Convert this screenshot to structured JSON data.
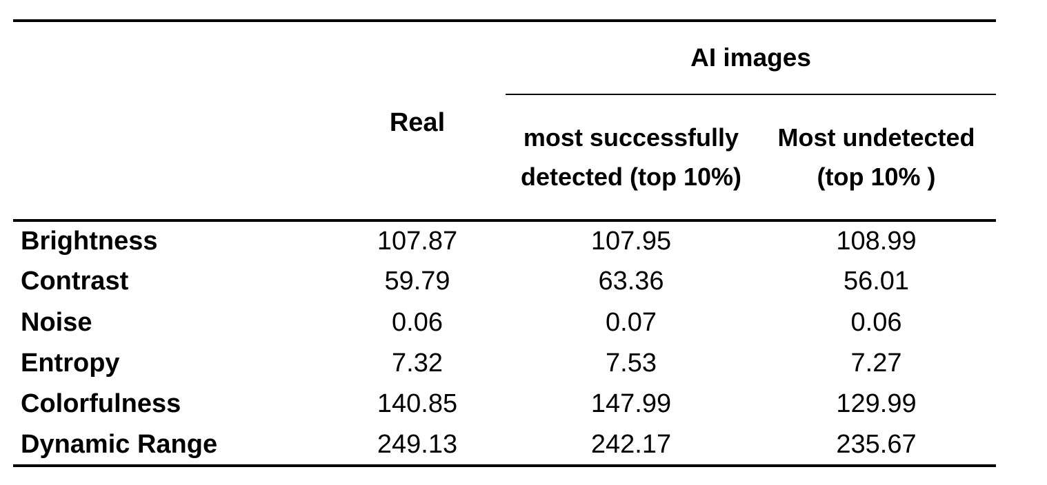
{
  "colors": {
    "text": "#000000",
    "rule": "#000000",
    "background": "#ffffff"
  },
  "table": {
    "ai_group_header": "AI images",
    "real_header": "Real",
    "sub_headers": [
      "most successfully detected (top 10%)",
      "Most undetected (top 10% )"
    ],
    "rows": [
      {
        "label": "Brightness",
        "values": [
          "107.87",
          "107.95",
          "108.99"
        ]
      },
      {
        "label": "Contrast",
        "values": [
          "59.79",
          "63.36",
          "56.01"
        ]
      },
      {
        "label": "Noise",
        "values": [
          "0.06",
          "0.07",
          "0.06"
        ]
      },
      {
        "label": "Entropy",
        "values": [
          "7.32",
          "7.53",
          "7.27"
        ]
      },
      {
        "label": "Colorfulness",
        "values": [
          "140.85",
          "147.99",
          "129.99"
        ]
      },
      {
        "label": "Dynamic Range",
        "values": [
          "249.13",
          "242.17",
          "235.67"
        ]
      }
    ]
  },
  "chart_data": {
    "type": "table",
    "title": "",
    "column_groups": [
      {
        "label": "",
        "span": 2
      },
      {
        "label": "AI images",
        "span": 2
      }
    ],
    "columns": [
      "",
      "Real",
      "most successfully detected (top 10%)",
      "Most undetected (top 10% )"
    ],
    "rows": [
      [
        "Brightness",
        107.87,
        107.95,
        108.99
      ],
      [
        "Contrast",
        59.79,
        63.36,
        56.01
      ],
      [
        "Noise",
        0.06,
        0.07,
        0.06
      ],
      [
        "Entropy",
        7.32,
        7.53,
        7.27
      ],
      [
        "Colorfulness",
        140.85,
        147.99,
        129.99
      ],
      [
        "Dynamic Range",
        249.13,
        242.17,
        235.67
      ]
    ]
  }
}
